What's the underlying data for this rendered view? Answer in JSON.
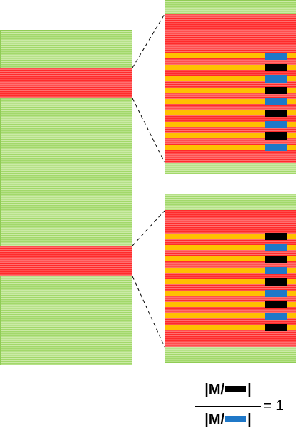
{
  "colors": {
    "green": "#a2d86a",
    "red": "#ff2b2b",
    "yellow": "#ffc000",
    "black_marker": "#000000",
    "blue_marker": "#1f78c8"
  },
  "zoom_top": {
    "markers": [
      "blue",
      "black",
      "blue",
      "black",
      "blue",
      "black",
      "blue",
      "black",
      "blue"
    ]
  },
  "zoom_bottom": {
    "markers": [
      "black",
      "blue",
      "black",
      "blue",
      "black",
      "blue",
      "black",
      "blue",
      "black"
    ]
  },
  "formula": {
    "numerator_prefix": "|M/",
    "numerator_suffix": "|",
    "denominator_prefix": "|M/",
    "denominator_suffix": "|",
    "equals": "= 1",
    "numerator_swatch": "black-swatch-icon",
    "denominator_swatch": "blue-swatch-icon"
  }
}
